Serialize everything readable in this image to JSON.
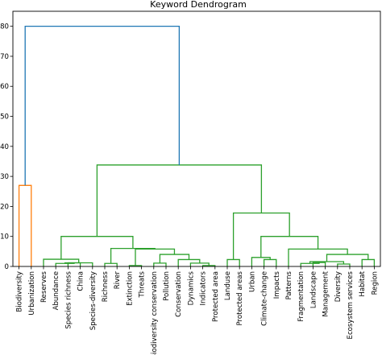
{
  "chart_data": {
    "type": "dendrogram",
    "title": "Keyword Dendrogram",
    "xlabel": "",
    "ylabel": "",
    "ylim": [
      0,
      85
    ],
    "yticks": [
      0,
      10,
      20,
      30,
      40,
      50,
      60,
      70,
      80
    ],
    "grid": false,
    "leaves": [
      "Biodiversity",
      "Urbanization",
      "Reserves",
      "Abundance",
      "Species richness",
      "China",
      "Species-diversity",
      "Richness",
      "River",
      "Extinction",
      "Threats",
      "Biodiversity conservation",
      "Pollution",
      "Conservation",
      "Dynamics",
      "Indicators",
      "Protected area",
      "Landuse",
      "Protected areas",
      "Urban",
      "Climate-change",
      "Impacts",
      "Patterns",
      "Fragmentation",
      "Landscape",
      "Management",
      "Diversity",
      "Ecosystem services",
      "Habitat",
      "Region"
    ],
    "colors": {
      "orange": "#ff7f0e",
      "green": "#2ca02c",
      "blue": "#1f77b4"
    },
    "merges": [
      {
        "a": "L0",
        "b": "L1",
        "h": 27,
        "color": "orange"
      },
      {
        "a": "L4",
        "b": "L5",
        "h": 1.2,
        "color": "green",
        "id": "m1"
      },
      {
        "a": "L3",
        "b": "m1",
        "h": 1.0,
        "color": "green",
        "id": "m2"
      },
      {
        "a": "m2",
        "b": "L6",
        "h": 1.2,
        "color": "green",
        "id": "m3"
      },
      {
        "a": "L2",
        "b": "m3",
        "h": 2.4,
        "color": "green",
        "id": "m4"
      },
      {
        "a": "L7",
        "b": "L8",
        "h": 1.0,
        "color": "green",
        "id": "m5"
      },
      {
        "a": "L9",
        "b": "L10",
        "h": 0.3,
        "color": "green",
        "id": "m6"
      },
      {
        "a": "L11",
        "b": "L12",
        "h": 1.1,
        "color": "green",
        "id": "m7"
      },
      {
        "a": "L15",
        "b": "L16",
        "h": 0.3,
        "color": "green",
        "id": "m8"
      },
      {
        "a": "L14",
        "b": "m8",
        "h": 1.1,
        "color": "green",
        "id": "m9"
      },
      {
        "a": "L13",
        "b": "m9",
        "h": 2.3,
        "color": "green",
        "id": "m10"
      },
      {
        "a": "m7",
        "b": "m10",
        "h": 4.0,
        "color": "green",
        "id": "m11"
      },
      {
        "a": "m6",
        "b": "m11",
        "h": 5.8,
        "color": "green",
        "id": "m12"
      },
      {
        "a": "m5",
        "b": "m12",
        "h": 6.0,
        "color": "green",
        "id": "m13"
      },
      {
        "a": "m4",
        "b": "m13",
        "h": 10.0,
        "color": "green",
        "id": "m14"
      },
      {
        "a": "L17",
        "b": "L18",
        "h": 2.3,
        "color": "green",
        "id": "m15"
      },
      {
        "a": "L20",
        "b": "L21",
        "h": 2.3,
        "color": "green",
        "id": "m16"
      },
      {
        "a": "L19",
        "b": "m16",
        "h": 3.0,
        "color": "green",
        "id": "m17"
      },
      {
        "a": "L24",
        "b": "L25",
        "h": 1.3,
        "color": "green",
        "id": "m18"
      },
      {
        "a": "L23",
        "b": "m18",
        "h": 1.0,
        "color": "green",
        "id": "m19"
      },
      {
        "a": "L26",
        "b": "L27",
        "h": 0.8,
        "color": "green",
        "id": "m20"
      },
      {
        "a": "m19",
        "b": "m20",
        "h": 1.6,
        "color": "green",
        "id": "m21"
      },
      {
        "a": "L28",
        "b": "L29",
        "h": 2.3,
        "color": "green",
        "id": "m22"
      },
      {
        "a": "m21",
        "b": "m22",
        "h": 4.0,
        "color": "green",
        "id": "m23"
      },
      {
        "a": "L22",
        "b": "m23",
        "h": 5.8,
        "color": "green",
        "id": "m24"
      },
      {
        "a": "m17",
        "b": "m24",
        "h": 10.0,
        "color": "green",
        "id": "m25"
      },
      {
        "a": "m15",
        "b": "m25",
        "h": 17.8,
        "color": "green",
        "id": "m26"
      },
      {
        "a": "m14",
        "b": "m26",
        "h": 33.8,
        "color": "green",
        "id": "m27"
      },
      {
        "a": "L0-1",
        "b": "m27",
        "h": 80,
        "color": "blue"
      }
    ]
  }
}
